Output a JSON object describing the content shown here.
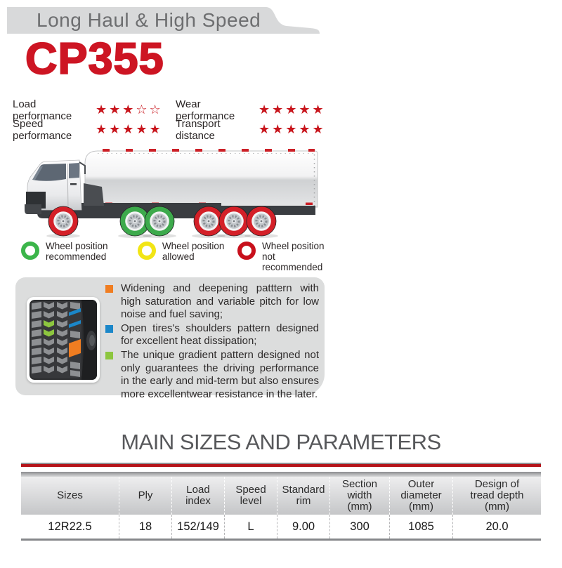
{
  "header": {
    "category_label": "Long Haul & High Speed",
    "model_name": "CP355",
    "banner_color": "#d8d9da",
    "model_color": "#cd1523"
  },
  "ratings": {
    "star_color": "#c8151c",
    "items": [
      {
        "label": "Load performance",
        "filled_stars": 3,
        "outline_stars": 2
      },
      {
        "label": "Wear performance",
        "filled_stars": 5,
        "outline_stars": 0
      },
      {
        "label": "Speed performance",
        "filled_stars": 5,
        "outline_stars": 0
      },
      {
        "label": "Transport distance",
        "filled_stars": 5,
        "outline_stars": 0
      }
    ]
  },
  "truck_diagram": {
    "wheel_colors": [
      "#d42028",
      "#3daa4c",
      "#3daa4c",
      "#d42028",
      "#d42028",
      "#d42028"
    ]
  },
  "legend": {
    "items": [
      {
        "ring_color": "#3bb54a",
        "lines": [
          "Wheel position",
          "recommended"
        ]
      },
      {
        "ring_color": "#f2e516",
        "lines": [
          "Wheel position",
          "allowed"
        ]
      },
      {
        "ring_color": "#c8101c",
        "lines": [
          "Wheel position",
          "not recommended"
        ]
      }
    ]
  },
  "features": {
    "box_color": "#dcdddd",
    "bullets": [
      {
        "marker_color": "#f07d21",
        "text": "Widening and deepening patttern with high saturation and variable pitch for low noise and fuel saving;"
      },
      {
        "marker_color": "#1b87c9",
        "text": "Open tires's shoulders pattern designed for excellent heat dissipation;"
      },
      {
        "marker_color": "#8dc63f",
        "text": "The unique gradient pattern designed not only guarantees the driving performance in the early and mid-term but also ensures more excellentwear resistance in the later."
      }
    ]
  },
  "sizes_section": {
    "title": "MAIN SIZES AND PARAMETERS",
    "rule_color": "#b5151b",
    "table": {
      "columns": [
        {
          "lines": [
            "Sizes"
          ]
        },
        {
          "lines": [
            "Ply"
          ]
        },
        {
          "lines": [
            "Load",
            "index"
          ]
        },
        {
          "lines": [
            "Speed",
            "level"
          ]
        },
        {
          "lines": [
            "Standard",
            "rim"
          ]
        },
        {
          "lines": [
            "Section",
            "width",
            "(mm)"
          ]
        },
        {
          "lines": [
            "Outer",
            "diameter",
            "(mm)"
          ]
        },
        {
          "lines": [
            "Design of",
            "tread depth",
            "(mm)"
          ]
        }
      ],
      "rows": [
        [
          "12R22.5",
          "18",
          "152/149",
          "L",
          "9.00",
          "300",
          "1085",
          "20.0"
        ]
      ]
    }
  }
}
